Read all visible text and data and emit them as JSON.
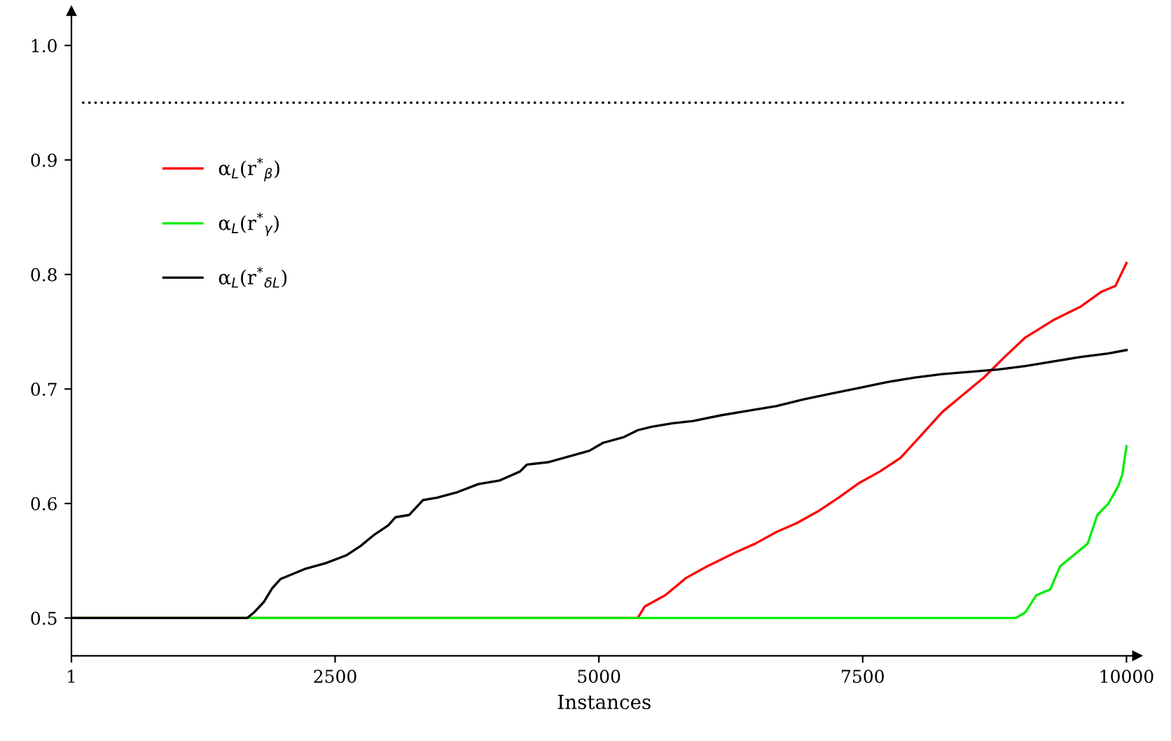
{
  "chart_data": {
    "type": "line",
    "xlabel": "Instances",
    "xlim": [
      1,
      10100
    ],
    "ylim": [
      0.467,
      1.03
    ],
    "xticks": [
      1,
      2500,
      5000,
      7500,
      10000
    ],
    "yticks": [
      0.5,
      0.6,
      0.7,
      0.8,
      0.9,
      {
        "value": 1.0,
        "label": "1.0"
      }
    ],
    "legend": "top left",
    "grid": false,
    "marker": "none",
    "line_style": "solid",
    "ref_lines": [
      {
        "axis": "y",
        "value": 0.95,
        "line_style": "dotted",
        "color": "#000000"
      }
    ],
    "series": [
      {
        "name": "α$_{L}$(r$^{*}$$_{β}$)",
        "color": "#ff0000",
        "x": [
          1,
          5368,
          5434,
          5630,
          5827,
          6024,
          6287,
          6483,
          6680,
          6877,
          7074,
          7271,
          7468,
          7664,
          7861,
          8058,
          8255,
          8452,
          8649,
          8845,
          9042,
          9304,
          9567,
          9764,
          9895,
          10000
        ],
        "values": [
          0.5,
          0.5,
          0.51,
          0.52,
          0.535,
          0.545,
          0.557,
          0.565,
          0.575,
          0.583,
          0.593,
          0.605,
          0.618,
          0.628,
          0.64,
          0.66,
          0.68,
          0.695,
          0.71,
          0.728,
          0.745,
          0.76,
          0.772,
          0.785,
          0.79,
          0.81
        ]
      },
      {
        "name": "α$_{L}$(r$^{*}$$_{γ}$)",
        "color": "#00ee00",
        "x": [
          1,
          8950,
          9042,
          9147,
          9278,
          9370,
          9501,
          9632,
          9724,
          9829,
          9921,
          9960,
          10000
        ],
        "values": [
          0.5,
          0.5,
          0.505,
          0.52,
          0.525,
          0.545,
          0.555,
          0.565,
          0.59,
          0.6,
          0.615,
          0.625,
          0.65
        ]
      },
      {
        "name": "α$_{L}$(r$^{*}$$_{δL}$)",
        "color": "#000000",
        "x": [
          1,
          1667,
          1733,
          1825,
          1904,
          1982,
          2087,
          2219,
          2415,
          2612,
          2743,
          2875,
          3006,
          3072,
          3203,
          3334,
          3465,
          3662,
          3859,
          4056,
          4253,
          4318,
          4515,
          4712,
          4909,
          5040,
          5237,
          5368,
          5499,
          5696,
          5893,
          6155,
          6418,
          6680,
          6943,
          7205,
          7467,
          7730,
          7992,
          8255,
          8517,
          8780,
          9042,
          9304,
          9567,
          9829,
          10000
        ],
        "values": [
          0.5,
          0.5,
          0.505,
          0.514,
          0.526,
          0.534,
          0.538,
          0.543,
          0.548,
          0.555,
          0.563,
          0.573,
          0.581,
          0.588,
          0.59,
          0.603,
          0.605,
          0.61,
          0.617,
          0.62,
          0.628,
          0.634,
          0.636,
          0.641,
          0.646,
          0.653,
          0.658,
          0.664,
          0.667,
          0.67,
          0.672,
          0.677,
          0.681,
          0.685,
          0.691,
          0.696,
          0.701,
          0.706,
          0.71,
          0.713,
          0.715,
          0.717,
          0.72,
          0.724,
          0.728,
          0.731,
          0.734
        ]
      }
    ]
  }
}
